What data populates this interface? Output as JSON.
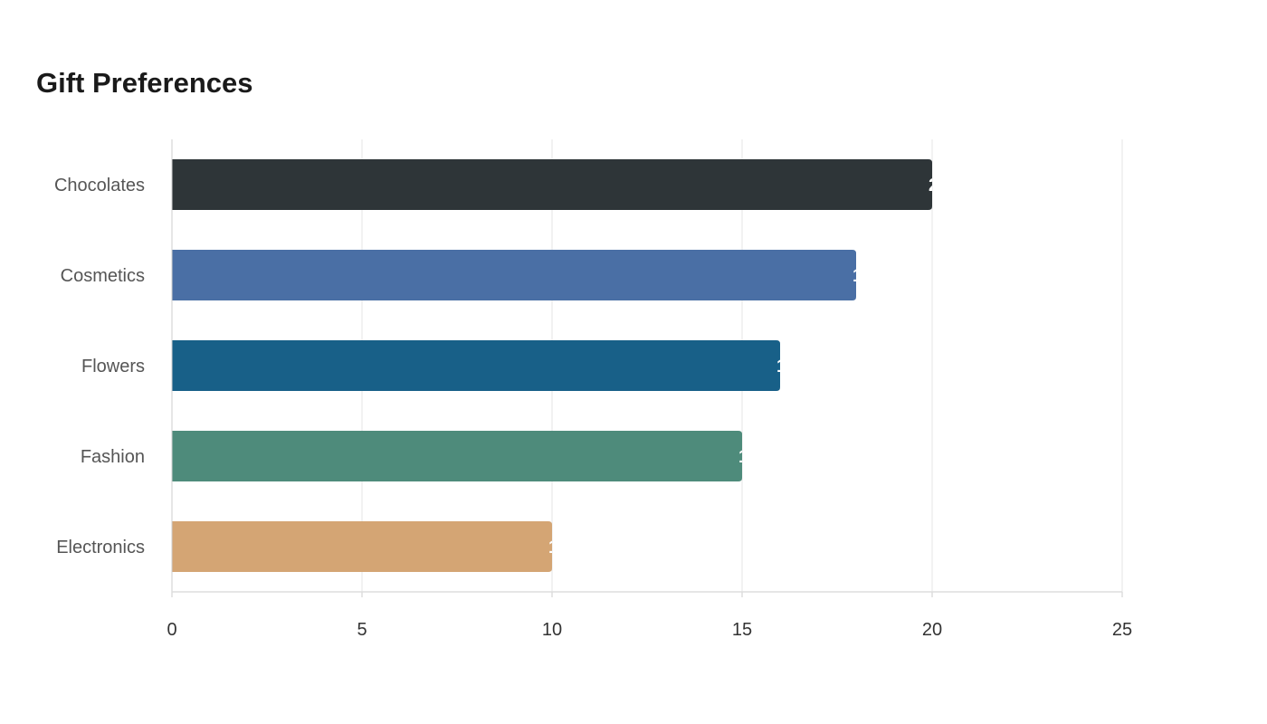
{
  "chart_data": {
    "type": "bar",
    "orientation": "horizontal",
    "title": "Gift Preferences",
    "xlabel": "",
    "ylabel": "",
    "categories": [
      "Chocolates",
      "Cosmetics",
      "Flowers",
      "Fashion",
      "Electronics"
    ],
    "values": [
      20,
      18,
      16,
      15,
      10
    ],
    "colors": [
      "#2e3538",
      "#4a6fa5",
      "#186088",
      "#4e8b7b",
      "#d4a574"
    ],
    "xlim": [
      0,
      25
    ],
    "xticks": [
      0,
      5,
      10,
      15,
      20,
      25
    ],
    "grid": true,
    "legend": "none"
  }
}
